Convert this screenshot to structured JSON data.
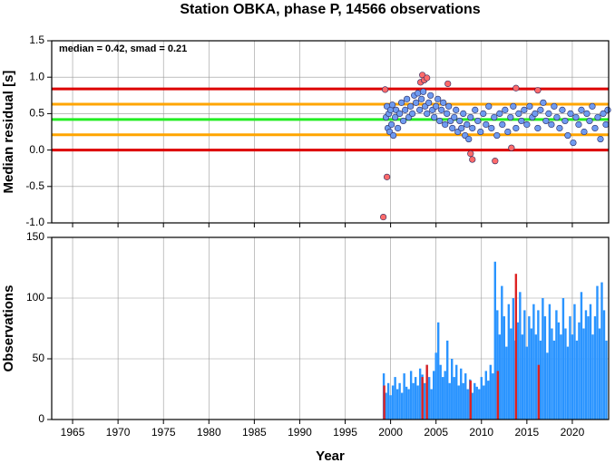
{
  "chart_data": [
    {
      "type": "scatter",
      "title": "Station OBKA, phase P, 14566 observations",
      "ylabel": "Median residual [s]",
      "annotation": "median = 0.42, smad = 0.21",
      "xlim": [
        1962.7,
        2024
      ],
      "xticks": [
        1965,
        1970,
        1975,
        1980,
        1985,
        1990,
        1995,
        2000,
        2005,
        2010,
        2015,
        2020
      ],
      "ylim": [
        -1.0,
        1.5
      ],
      "yticks": [
        {
          "value": -1.0,
          "label": "-1.0"
        },
        -0.5,
        {
          "value": 0.0,
          "label": "0.0"
        },
        0.5,
        {
          "value": 1.0,
          "label": "1.0"
        },
        1.5
      ],
      "grid": true,
      "hlines": [
        {
          "value": 0.84,
          "color": "#dd0000"
        },
        {
          "value": 0.63,
          "color": "#ffa500"
        },
        {
          "value": 0.42,
          "color": "#22ee22"
        },
        {
          "value": 0.21,
          "color": "#ffa500"
        },
        {
          "value": 0,
          "color": "#dd0000"
        }
      ],
      "series": [
        {
          "color": "#6f9bf0",
          "x": [
            1999.5,
            1999.6,
            1999.7,
            1999.8,
            1999.9,
            2000.0,
            2000.1,
            2000.2,
            2000.3,
            2000.5,
            2000.6,
            2000.8,
            2001.0,
            2001.2,
            2001.4,
            2001.6,
            2001.8,
            2002.0,
            2002.2,
            2002.4,
            2002.6,
            2002.8,
            2003.0,
            2003.2,
            2003.4,
            2003.6,
            2003.8,
            2004.0,
            2004.2,
            2004.4,
            2004.6,
            2004.8,
            2005.0,
            2005.2,
            2005.4,
            2005.6,
            2005.8,
            2006.0,
            2006.2,
            2006.4,
            2006.6,
            2006.8,
            2007.0,
            2007.2,
            2007.4,
            2007.6,
            2007.8,
            2008.0,
            2008.2,
            2008.4,
            2008.6,
            2008.8,
            2009.0,
            2009.3,
            2009.6,
            2009.9,
            2010.2,
            2010.5,
            2010.8,
            2011.1,
            2011.4,
            2011.7,
            2012.0,
            2012.3,
            2012.6,
            2012.9,
            2013.2,
            2013.5,
            2013.8,
            2014.1,
            2014.4,
            2014.7,
            2015.0,
            2015.3,
            2015.6,
            2015.9,
            2016.2,
            2016.5,
            2016.8,
            2017.1,
            2017.4,
            2017.7,
            2018.0,
            2018.3,
            2018.6,
            2018.9,
            2019.2,
            2019.5,
            2019.8,
            2020.1,
            2020.4,
            2020.7,
            2021.0,
            2021.3,
            2021.6,
            2021.9,
            2022.2,
            2022.5,
            2022.8,
            2023.1,
            2023.4,
            2023.7,
            2023.9
          ],
          "values": [
            0.45,
            0.6,
            0.3,
            0.5,
            0.25,
            0.55,
            0.35,
            0.62,
            0.2,
            0.45,
            0.55,
            0.3,
            0.5,
            0.65,
            0.4,
            0.55,
            0.7,
            0.45,
            0.6,
            0.5,
            0.75,
            0.65,
            0.78,
            0.55,
            0.7,
            0.8,
            0.6,
            0.5,
            0.65,
            0.75,
            0.55,
            0.45,
            0.6,
            0.7,
            0.4,
            0.55,
            0.65,
            0.35,
            0.5,
            0.6,
            0.4,
            0.3,
            0.45,
            0.55,
            0.25,
            0.4,
            0.3,
            0.5,
            0.2,
            0.35,
            0.15,
            0.45,
            0.3,
            0.55,
            0.4,
            0.25,
            0.5,
            0.35,
            0.6,
            0.3,
            0.45,
            0.2,
            0.5,
            0.35,
            0.55,
            0.25,
            0.45,
            0.6,
            0.3,
            0.5,
            0.4,
            0.55,
            0.35,
            0.6,
            0.45,
            0.5,
            0.3,
            0.55,
            0.65,
            0.4,
            0.5,
            0.35,
            0.6,
            0.45,
            0.3,
            0.55,
            0.4,
            0.2,
            0.5,
            0.1,
            0.45,
            0.35,
            0.55,
            0.25,
            0.5,
            0.4,
            0.6,
            0.3,
            0.45,
            0.15,
            0.5,
            0.35,
            0.55
          ]
        },
        {
          "color": "#ff6a6a",
          "x": [
            1999.2,
            1999.4,
            1999.6,
            2003.3,
            2003.5,
            2003.7,
            2004.0,
            2006.3,
            2008.8,
            2009.0,
            2011.5,
            2013.3,
            2013.8,
            2016.2
          ],
          "values": [
            -0.92,
            0.83,
            -0.37,
            0.93,
            1.03,
            0.96,
            0.99,
            0.91,
            -0.05,
            -0.13,
            -0.15,
            0.03,
            0.85,
            0.82
          ]
        }
      ]
    },
    {
      "type": "bar",
      "ylabel": "Observations",
      "xlabel": "Year",
      "xlim": [
        1962.7,
        2024
      ],
      "xticks": [
        1965,
        1970,
        1975,
        1980,
        1985,
        1990,
        1995,
        2000,
        2005,
        2010,
        2015,
        2020
      ],
      "ylim": [
        0,
        150
      ],
      "yticks": [
        0,
        50,
        100,
        150
      ],
      "grid": true,
      "series": [
        {
          "color": "#2a94ff",
          "x": [
            1999.25,
            1999.5,
            1999.75,
            2000.0,
            2000.25,
            2000.5,
            2000.75,
            2001.0,
            2001.25,
            2001.5,
            2001.75,
            2002.0,
            2002.25,
            2002.5,
            2002.75,
            2003.0,
            2003.25,
            2003.5,
            2003.75,
            2004.0,
            2004.25,
            2004.5,
            2004.75,
            2005.0,
            2005.25,
            2005.5,
            2005.75,
            2006.0,
            2006.25,
            2006.5,
            2006.75,
            2007.0,
            2007.25,
            2007.5,
            2007.75,
            2008.0,
            2008.25,
            2008.5,
            2008.75,
            2009.0,
            2009.25,
            2009.5,
            2009.75,
            2010.0,
            2010.25,
            2010.5,
            2010.75,
            2011.0,
            2011.25,
            2011.5,
            2011.75,
            2012.0,
            2012.25,
            2012.5,
            2012.75,
            2013.0,
            2013.25,
            2013.5,
            2013.75,
            2014.0,
            2014.25,
            2014.5,
            2014.75,
            2015.0,
            2015.25,
            2015.5,
            2015.75,
            2016.0,
            2016.25,
            2016.5,
            2016.75,
            2017.0,
            2017.25,
            2017.5,
            2017.75,
            2018.0,
            2018.25,
            2018.5,
            2018.75,
            2019.0,
            2019.25,
            2019.5,
            2019.75,
            2020.0,
            2020.25,
            2020.5,
            2020.75,
            2021.0,
            2021.25,
            2021.5,
            2021.75,
            2022.0,
            2022.25,
            2022.5,
            2022.75,
            2023.0,
            2023.25,
            2023.5,
            2023.75
          ],
          "values": [
            38,
            22,
            30,
            20,
            28,
            35,
            25,
            30,
            22,
            38,
            27,
            25,
            40,
            30,
            35,
            28,
            42,
            37,
            30,
            45,
            35,
            25,
            40,
            55,
            80,
            45,
            35,
            40,
            65,
            30,
            50,
            35,
            45,
            28,
            42,
            30,
            38,
            25,
            33,
            22,
            30,
            27,
            25,
            35,
            28,
            40,
            32,
            45,
            38,
            130,
            90,
            70,
            110,
            85,
            60,
            95,
            75,
            100,
            65,
            80,
            105,
            70,
            90,
            60,
            85,
            75,
            95,
            70,
            90,
            65,
            100,
            85,
            55,
            95,
            75,
            65,
            90,
            80,
            70,
            100,
            75,
            60,
            85,
            70,
            95,
            65,
            80,
            105,
            75,
            90,
            85,
            95,
            70,
            85,
            110,
            75,
            113,
            90,
            65
          ]
        },
        {
          "color": "#dd2222",
          "x": [
            1999.3,
            2003.5,
            2004.0,
            2008.8,
            2011.8,
            2013.8,
            2016.3
          ],
          "values": [
            28,
            35,
            45,
            32,
            40,
            120,
            45
          ]
        }
      ]
    }
  ]
}
